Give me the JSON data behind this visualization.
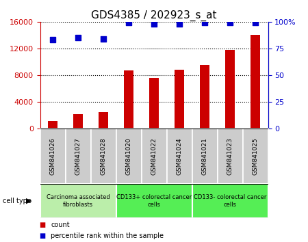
{
  "title": "GDS4385 / 202923_s_at",
  "samples": [
    "GSM841026",
    "GSM841027",
    "GSM841028",
    "GSM841020",
    "GSM841022",
    "GSM841024",
    "GSM841021",
    "GSM841023",
    "GSM841025"
  ],
  "counts": [
    1100,
    2100,
    2400,
    8700,
    7600,
    8800,
    9500,
    11800,
    14000
  ],
  "percentile_ranks": [
    83,
    85,
    84,
    99,
    98,
    98,
    99,
    99,
    99
  ],
  "bar_color": "#cc0000",
  "dot_color": "#0000cc",
  "groups": [
    {
      "label": "Carcinoma associated\nfibroblasts",
      "start": 0,
      "end": 3,
      "color": "#bbeeaa"
    },
    {
      "label": "CD133+ colorectal cancer\ncells",
      "start": 3,
      "end": 6,
      "color": "#55ee55"
    },
    {
      "label": "CD133- colorectal cancer\ncells",
      "start": 6,
      "end": 9,
      "color": "#55ee55"
    }
  ],
  "ylim_left": [
    0,
    16000
  ],
  "ylim_right": [
    0,
    100
  ],
  "yticks_left": [
    0,
    4000,
    8000,
    12000,
    16000
  ],
  "yticks_right": [
    0,
    25,
    50,
    75,
    100
  ],
  "left_tick_color": "#cc0000",
  "right_tick_color": "#0000cc",
  "background_color": "#ffffff",
  "sample_box_color": "#cccccc",
  "title_fontsize": 11,
  "bar_width": 0.4
}
